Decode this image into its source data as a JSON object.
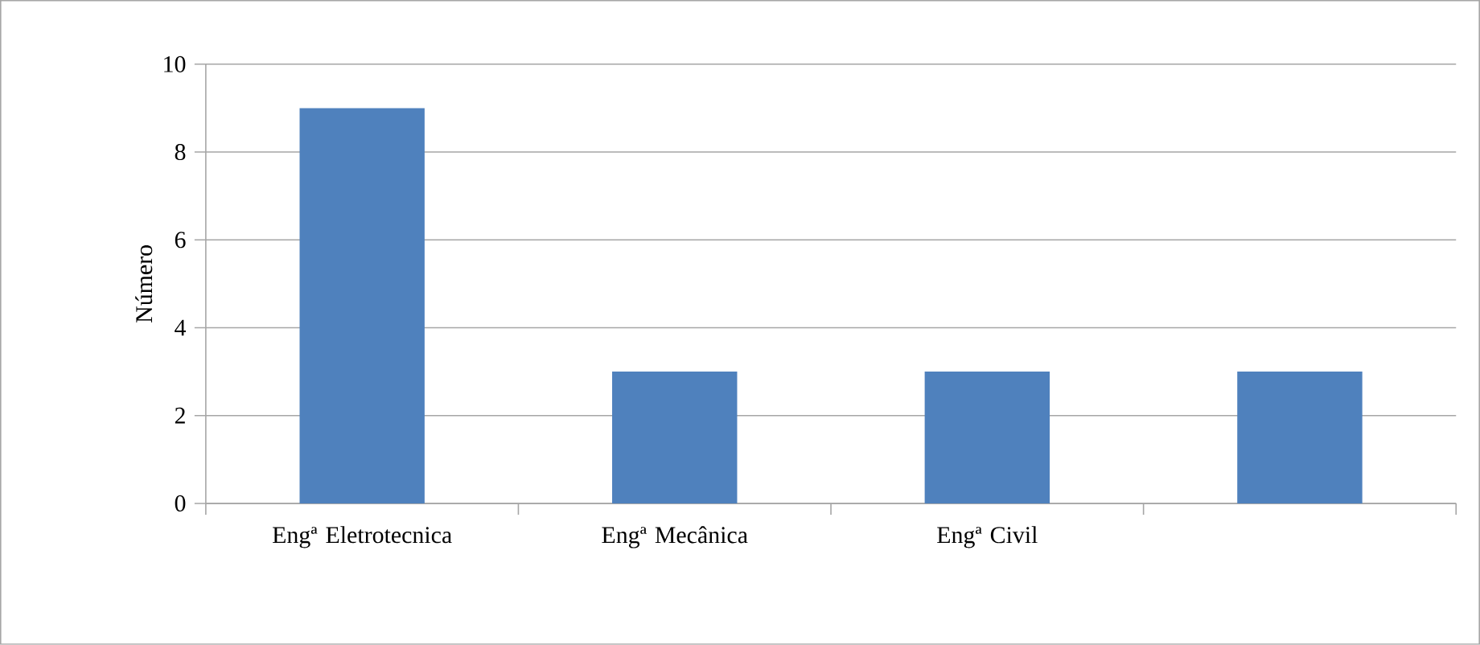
{
  "chart_data": {
    "type": "bar",
    "ylabel": "Número",
    "categories": [
      "Engª Eletrotecnica",
      "Engª Mecânica",
      "Engª Civil",
      null
    ],
    "values": [
      9,
      3,
      3,
      3
    ],
    "color": "#4f81bd",
    "ylim": [
      0,
      10
    ],
    "yticks": [
      0,
      2,
      4,
      6,
      8,
      10
    ],
    "grid": "y"
  }
}
